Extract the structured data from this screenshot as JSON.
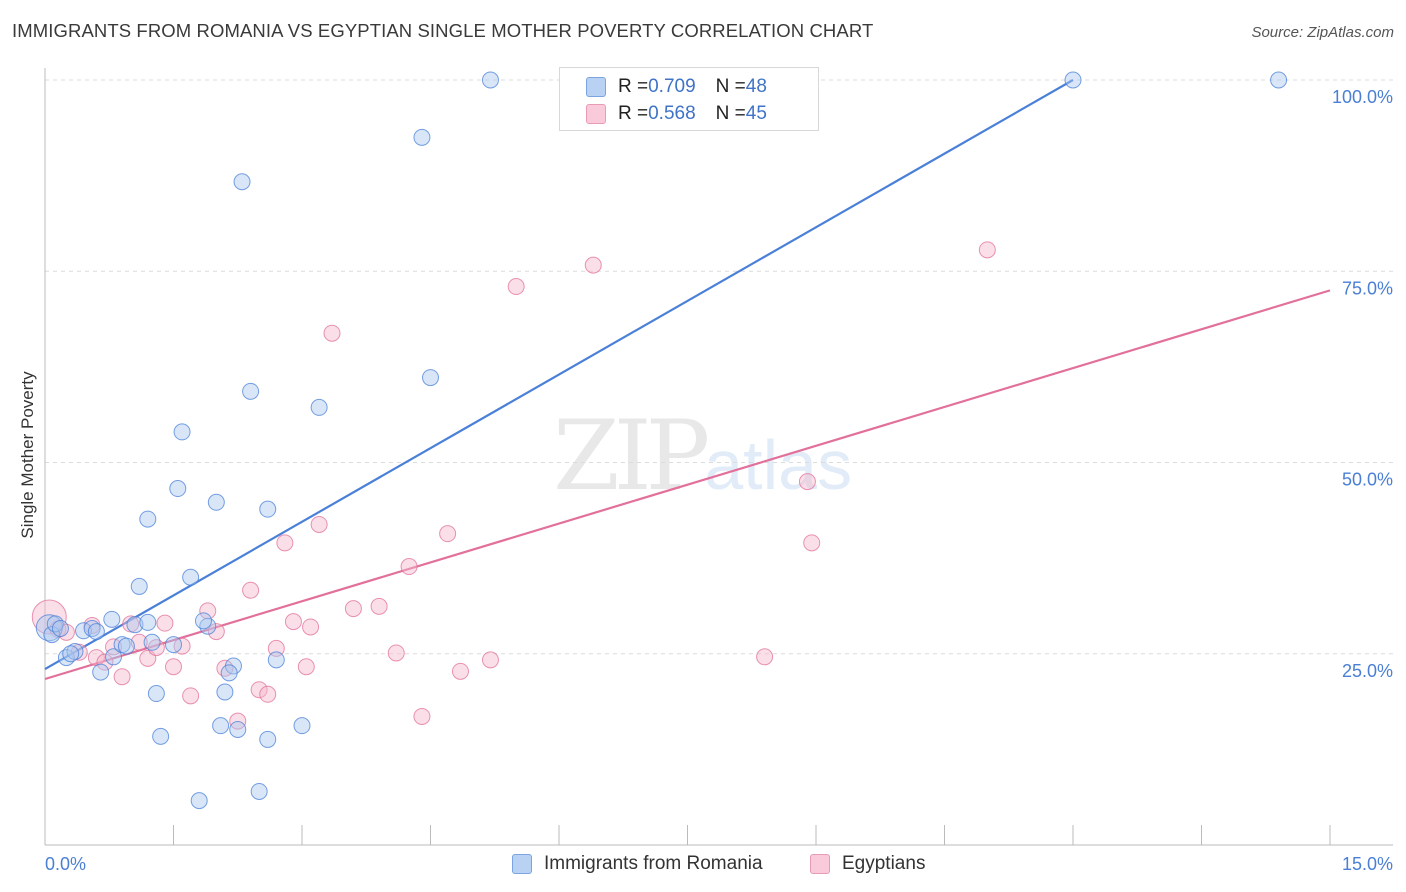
{
  "header": {
    "title": "IMMIGRANTS FROM ROMANIA VS EGYPTIAN SINGLE MOTHER POVERTY CORRELATION CHART",
    "source": "Source: ZipAtlas.com"
  },
  "watermark": {
    "zip": "ZIP",
    "atlas": "atlas"
  },
  "legend": {
    "series1": {
      "r_label": "R = ",
      "r_value": "0.709",
      "n_label": "N = ",
      "n_value": "48"
    },
    "series2": {
      "r_label": "R = ",
      "r_value": "0.568",
      "n_label": "N = ",
      "n_value": "45"
    }
  },
  "chart_data": {
    "type": "scatter",
    "title": "IMMIGRANTS FROM ROMANIA VS EGYPTIAN SINGLE MOTHER POVERTY CORRELATION CHART",
    "xlabel": "",
    "ylabel": "Single Mother Poverty",
    "xlim": [
      0,
      15
    ],
    "ylim": [
      0,
      102
    ],
    "x_tick_labels": [
      "0.0%",
      "15.0%"
    ],
    "y_ticks": [
      25,
      50,
      75,
      100
    ],
    "y_tick_labels": [
      "25.0%",
      "50.0%",
      "75.0%",
      "100.0%"
    ],
    "colors": {
      "blue": "#4a80d8",
      "blue_fill": "#aac8f0",
      "pink": "#e2709a",
      "pink_fill": "#f5b8cc"
    },
    "series": [
      {
        "name": "Immigrants from Romania",
        "color": "#4a80d8",
        "trend": {
          "x": [
            0,
            12.0
          ],
          "y": [
            23.0,
            100.0
          ]
        },
        "points": [
          [
            0.05,
            28.4
          ],
          [
            0.08,
            27.5
          ],
          [
            0.12,
            28.9
          ],
          [
            0.18,
            28.3
          ],
          [
            0.25,
            24.5
          ],
          [
            0.35,
            25.3
          ],
          [
            0.45,
            28.0
          ],
          [
            0.55,
            28.3
          ],
          [
            0.65,
            22.6
          ],
          [
            0.8,
            24.6
          ],
          [
            0.78,
            29.5
          ],
          [
            0.9,
            26.2
          ],
          [
            0.95,
            26.0
          ],
          [
            1.05,
            28.8
          ],
          [
            1.1,
            33.8
          ],
          [
            1.2,
            29.1
          ],
          [
            1.25,
            26.5
          ],
          [
            1.3,
            19.8
          ],
          [
            1.35,
            14.2
          ],
          [
            1.5,
            26.2
          ],
          [
            1.2,
            42.6
          ],
          [
            1.6,
            54.0
          ],
          [
            1.55,
            46.6
          ],
          [
            1.7,
            35.0
          ],
          [
            1.9,
            28.6
          ],
          [
            1.8,
            5.8
          ],
          [
            2.0,
            44.8
          ],
          [
            2.1,
            20.0
          ],
          [
            2.05,
            15.6
          ],
          [
            2.2,
            23.4
          ],
          [
            2.25,
            15.1
          ],
          [
            2.3,
            86.7
          ],
          [
            2.4,
            59.3
          ],
          [
            2.5,
            7.0
          ],
          [
            2.6,
            43.9
          ],
          [
            2.6,
            13.8
          ],
          [
            2.7,
            24.2
          ],
          [
            3.0,
            15.6
          ],
          [
            3.2,
            57.2
          ],
          [
            4.4,
            92.5
          ],
          [
            4.5,
            61.1
          ],
          [
            5.2,
            100.0
          ],
          [
            12.0,
            100.0
          ],
          [
            14.4,
            100.0
          ],
          [
            0.6,
            27.9
          ],
          [
            1.85,
            29.3
          ],
          [
            0.3,
            25.0
          ],
          [
            2.15,
            22.5
          ]
        ]
      },
      {
        "name": "Egyptians",
        "color": "#e2709a",
        "trend": {
          "x": [
            0,
            15.0
          ],
          "y": [
            21.7,
            72.5
          ]
        },
        "points": [
          [
            0.05,
            29.8
          ],
          [
            0.15,
            28.2
          ],
          [
            0.25,
            27.8
          ],
          [
            0.4,
            25.2
          ],
          [
            0.55,
            28.7
          ],
          [
            0.6,
            24.5
          ],
          [
            0.7,
            23.9
          ],
          [
            0.8,
            25.9
          ],
          [
            0.9,
            22.0
          ],
          [
            1.0,
            28.9
          ],
          [
            1.1,
            26.5
          ],
          [
            1.2,
            24.4
          ],
          [
            1.3,
            25.8
          ],
          [
            1.4,
            29.0
          ],
          [
            1.5,
            23.3
          ],
          [
            1.6,
            26.0
          ],
          [
            1.7,
            19.5
          ],
          [
            1.9,
            30.6
          ],
          [
            2.0,
            27.9
          ],
          [
            2.1,
            23.1
          ],
          [
            2.25,
            16.2
          ],
          [
            2.4,
            33.3
          ],
          [
            2.5,
            20.3
          ],
          [
            2.6,
            19.7
          ],
          [
            2.7,
            25.7
          ],
          [
            2.8,
            39.5
          ],
          [
            2.9,
            29.2
          ],
          [
            3.05,
            23.3
          ],
          [
            3.1,
            28.5
          ],
          [
            3.2,
            41.9
          ],
          [
            3.35,
            66.9
          ],
          [
            3.6,
            30.9
          ],
          [
            3.9,
            31.2
          ],
          [
            4.1,
            25.1
          ],
          [
            4.25,
            36.4
          ],
          [
            4.4,
            16.8
          ],
          [
            4.7,
            40.7
          ],
          [
            4.85,
            22.7
          ],
          [
            5.2,
            24.2
          ],
          [
            5.5,
            73.0
          ],
          [
            6.4,
            75.8
          ],
          [
            8.4,
            24.6
          ],
          [
            8.9,
            47.5
          ],
          [
            8.95,
            39.5
          ],
          [
            11.0,
            77.8
          ]
        ]
      }
    ]
  },
  "bottom_legend": {
    "item1": "Immigrants from Romania",
    "item2": "Egyptians"
  }
}
